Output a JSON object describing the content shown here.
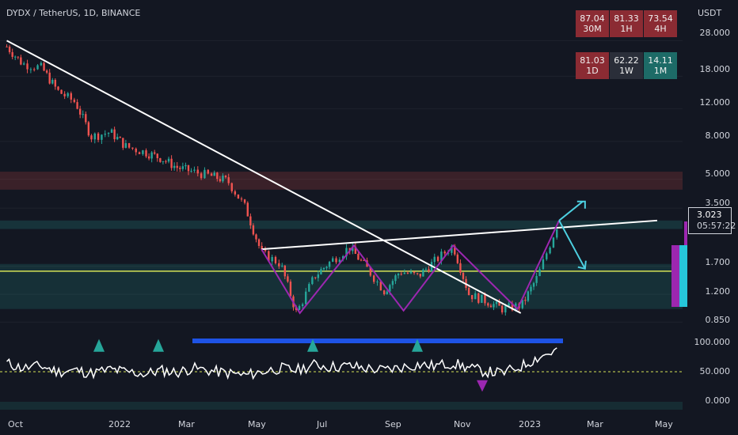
{
  "chart_title": "DYDX / TetherUS, 1D, BINANCE",
  "axis_unit": "USDT",
  "price_axis": [
    "28.000",
    "18.000",
    "12.000",
    "8.000",
    "5.000",
    "3.500",
    "1.700",
    "1.200",
    "0.850"
  ],
  "osc_axis": [
    "100.000",
    "50.000",
    "0.000"
  ],
  "x_axis": [
    "Oct",
    "2022",
    "Mar",
    "May",
    "Jul",
    "Sep",
    "Nov",
    "2023",
    "Mar",
    "May"
  ],
  "last_price": {
    "value": "3.023",
    "countdown": "05:57:22"
  },
  "rsi_table": [
    {
      "value": "87.04",
      "tf": "30M",
      "color": "#8b2b33"
    },
    {
      "value": "81.33",
      "tf": "1H",
      "color": "#8b2b33"
    },
    {
      "value": "73.54",
      "tf": "4H",
      "color": "#8b2b33"
    },
    {
      "value": "81.03",
      "tf": "1D",
      "color": "#8b2b33"
    },
    {
      "value": "62.22",
      "tf": "1W",
      "color": "#2a2e39"
    },
    {
      "value": "14.11",
      "tf": "1M",
      "color": "#1d6b67"
    }
  ],
  "colors": {
    "background": "#131722",
    "up": "#26a69a",
    "down": "#ef5350",
    "trendline": "#ffffff",
    "pattern": "#9c27b0",
    "projection": "#4dd0e1",
    "support": "#d4e157"
  },
  "chart_data": {
    "type": "line",
    "title": "DYDX / TetherUS, 1D, BINANCE",
    "ylabel": "USDT",
    "y_scale": "log",
    "ylim": [
      0.75,
      40
    ],
    "x": [
      "2021-10-01",
      "2021-10-15",
      "2021-11-01",
      "2021-11-15",
      "2021-12-01",
      "2021-12-15",
      "2022-01-01",
      "2022-01-15",
      "2022-02-01",
      "2022-02-15",
      "2022-03-01",
      "2022-03-15",
      "2022-04-01",
      "2022-04-15",
      "2022-05-01",
      "2022-05-15",
      "2022-06-01",
      "2022-06-15",
      "2022-07-01",
      "2022-07-15",
      "2022-08-01",
      "2022-08-15",
      "2022-09-01",
      "2022-09-15",
      "2022-10-01",
      "2022-10-15",
      "2022-11-01",
      "2022-11-15",
      "2022-12-01",
      "2022-12-15",
      "2023-01-01",
      "2023-01-15",
      "2023-02-01"
    ],
    "series": [
      {
        "values": [
          26.0,
          21.0,
          20.0,
          15.0,
          13.0,
          8.5,
          9.0,
          7.5,
          7.0,
          6.5,
          5.8,
          5.5,
          5.2,
          4.9,
          3.5,
          2.0,
          1.75,
          0.95,
          1.5,
          1.8,
          2.15,
          1.7,
          1.25,
          1.6,
          1.5,
          1.8,
          2.2,
          1.2,
          1.1,
          1.0,
          1.05,
          1.5,
          2.8
        ]
      }
    ],
    "annotations": {
      "descending_trendline": {
        "from": [
          "2021-10-01",
          28.0
        ],
        "to": [
          "2022-12-31",
          0.95
        ]
      },
      "neckline": {
        "from": [
          "2022-05-15",
          2.1
        ],
        "to": [
          "2023-05-01",
          3.0
        ]
      },
      "support_level": 1.6
    },
    "oscillator": {
      "ylim": [
        0,
        100
      ],
      "ticks": [
        0,
        50,
        100
      ],
      "values": [
        62,
        55,
        58,
        50,
        52,
        48,
        53,
        50,
        47,
        52,
        49,
        55,
        51,
        48,
        45,
        50,
        55,
        52,
        60,
        57,
        58,
        55,
        52,
        56,
        60,
        58,
        62,
        55,
        50,
        48,
        58,
        70,
        80
      ]
    }
  }
}
